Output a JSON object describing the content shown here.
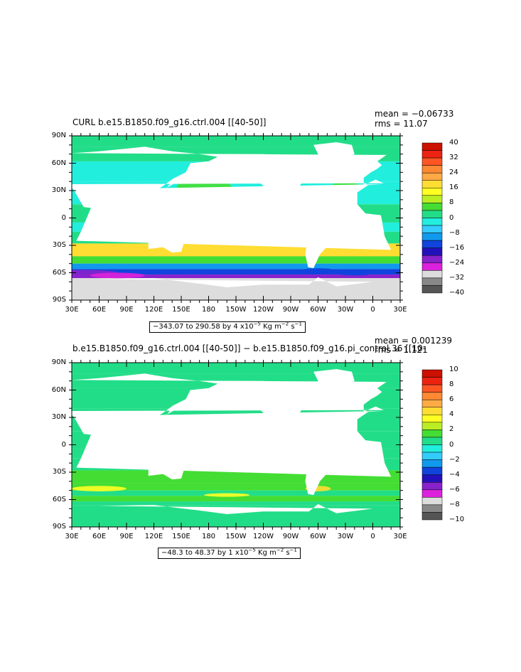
{
  "chart_data": [
    {
      "type": "heatmap",
      "title": "CURL b.e15.B1850.f09_g16.ctrl.004 [[40-50]]",
      "stats": {
        "mean": "mean = −0.06733",
        "rms": "rms = 11.07"
      },
      "range_text": {
        "lead": "−343.07 to 290.58 by 4 x10",
        "unit": " Kg m",
        "unit2": " s"
      },
      "xlabels": [
        "30E",
        "60E",
        "90E",
        "120E",
        "150E",
        "180",
        "150W",
        "120W",
        "90W",
        "60W",
        "30W",
        "0",
        "30E"
      ],
      "ylabels": [
        "90N",
        "60N",
        "30N",
        "0",
        "30S",
        "60S",
        "90S"
      ],
      "ylim": [
        -90,
        90
      ],
      "colorbar": {
        "labels": [
          "40",
          "32",
          "24",
          "16",
          "8",
          "0",
          "−8",
          "−16",
          "−24",
          "−32",
          "−40"
        ],
        "colors": [
          "#cc1100",
          "#ee2211",
          "#ff5522",
          "#ff8833",
          "#ffaa44",
          "#ffdd33",
          "#ffff22",
          "#bbee22",
          "#44dd33",
          "#22dd88",
          "#22eedd",
          "#33ccff",
          "#1199ee",
          "#1144dd",
          "#2211bb",
          "#8822cc",
          "#dd22dd",
          "#dddddd",
          "#888888",
          "#555555"
        ]
      }
    },
    {
      "type": "heatmap",
      "title": "b.e15.B1850.f09_g16.ctrl.004 [[40-50]] − b.e15.B1850.f09_g16.pi_control.36 [[10-",
      "stats": {
        "mean": "mean = 0.001239",
        "rms": "rms = 1.121"
      },
      "range_text": {
        "lead": "−48.3 to 48.37 by 1 x10",
        "unit": " Kg m",
        "unit2": " s"
      },
      "xlabels": [
        "30E",
        "60E",
        "90E",
        "120E",
        "150E",
        "180",
        "150W",
        "120W",
        "90W",
        "60W",
        "30W",
        "0",
        "30E"
      ],
      "ylabels": [
        "90N",
        "60N",
        "30N",
        "0",
        "30S",
        "60S",
        "90S"
      ],
      "ylim": [
        -90,
        90
      ],
      "colorbar": {
        "labels": [
          "10",
          "8",
          "6",
          "4",
          "2",
          "0",
          "−2",
          "−4",
          "−6",
          "−8",
          "−10"
        ],
        "colors": [
          "#cc1100",
          "#ee2211",
          "#ff5522",
          "#ff8833",
          "#ffaa44",
          "#ffdd33",
          "#ffff22",
          "#bbee22",
          "#44dd33",
          "#22dd88",
          "#22eedd",
          "#33ccff",
          "#1199ee",
          "#1144dd",
          "#2211bb",
          "#8822cc",
          "#dd22dd",
          "#dddddd",
          "#888888",
          "#555555"
        ]
      }
    }
  ]
}
